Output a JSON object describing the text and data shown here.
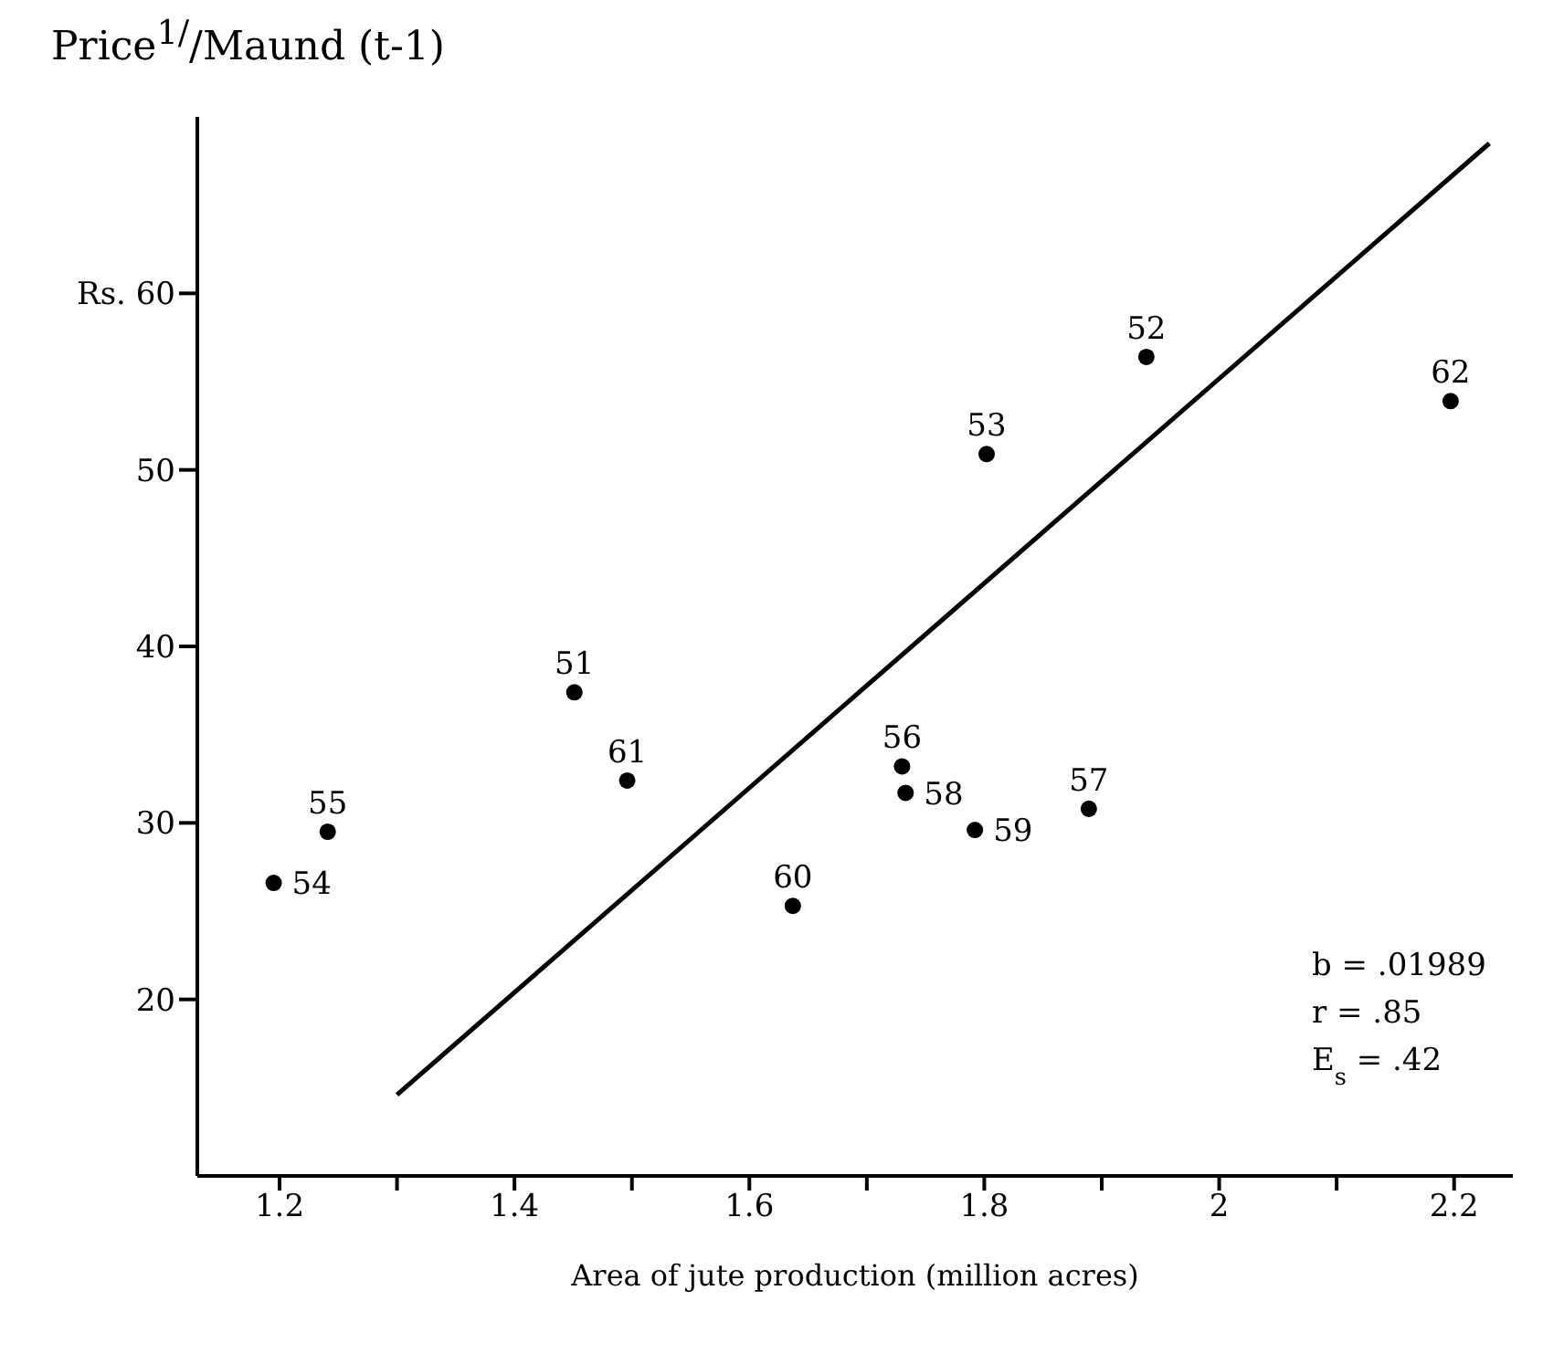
{
  "chart_data": {
    "type": "scatter",
    "ylabel": "Price$^{1/}$/Maund (t-1)",
    "xlabel": "Area of jute production (million acres)",
    "x": [
      1.195,
      1.241,
      1.451,
      1.496,
      1.637,
      1.73,
      1.733,
      1.792,
      1.889,
      1.802,
      1.938,
      2.197
    ],
    "series": [
      {
        "color": "#000000",
        "values": [
          26.6,
          29.5,
          37.4,
          32.4,
          25.3,
          33.2,
          31.7,
          29.6,
          30.8,
          50.9,
          56.4,
          53.9
        ]
      },
      {
        "type": "line",
        "marker": "none",
        "color": "#000000",
        "x": [
          1.3,
          2.23
        ],
        "values": [
          14.6,
          68.5
        ]
      }
    ],
    "xlim": [
      1.13,
      2.25
    ],
    "ylim": [
      10,
      70
    ],
    "xticks": [
      1.2,
      {
        "value": 1.3,
        "label": null
      },
      1.4,
      {
        "value": 1.5,
        "label": null
      },
      1.6,
      {
        "value": 1.7,
        "label": null
      },
      1.8,
      {
        "value": 1.9,
        "label": null
      },
      2.0,
      {
        "value": 2.1,
        "label": null
      },
      2.2
    ],
    "yticks": [
      20,
      30,
      40,
      50,
      {
        "value": 60,
        "label": "Rs. 60"
      }
    ],
    "marker": "circle",
    "line_style": "solid",
    "annotations": [
      {
        "text": "54",
        "x": 1.195,
        "y": 26.6
      },
      {
        "text": "55",
        "x": 1.241,
        "y": 29.5
      },
      {
        "text": "51",
        "x": 1.451,
        "y": 37.4
      },
      {
        "text": "61",
        "x": 1.496,
        "y": 32.4
      },
      {
        "text": "60",
        "x": 1.637,
        "y": 25.3
      },
      {
        "text": "56",
        "x": 1.73,
        "y": 33.2
      },
      {
        "text": "58",
        "x": 1.733,
        "y": 31.7
      },
      {
        "text": "59",
        "x": 1.792,
        "y": 29.6
      },
      {
        "text": "57",
        "x": 1.889,
        "y": 30.8
      },
      {
        "text": "53",
        "x": 1.802,
        "y": 50.9
      },
      {
        "text": "52",
        "x": 1.938,
        "y": 56.4
      },
      {
        "text": "62",
        "x": 2.197,
        "y": 53.9
      },
      "b = .01989",
      "r = .85",
      "E$_{s}$ = .42"
    ]
  }
}
